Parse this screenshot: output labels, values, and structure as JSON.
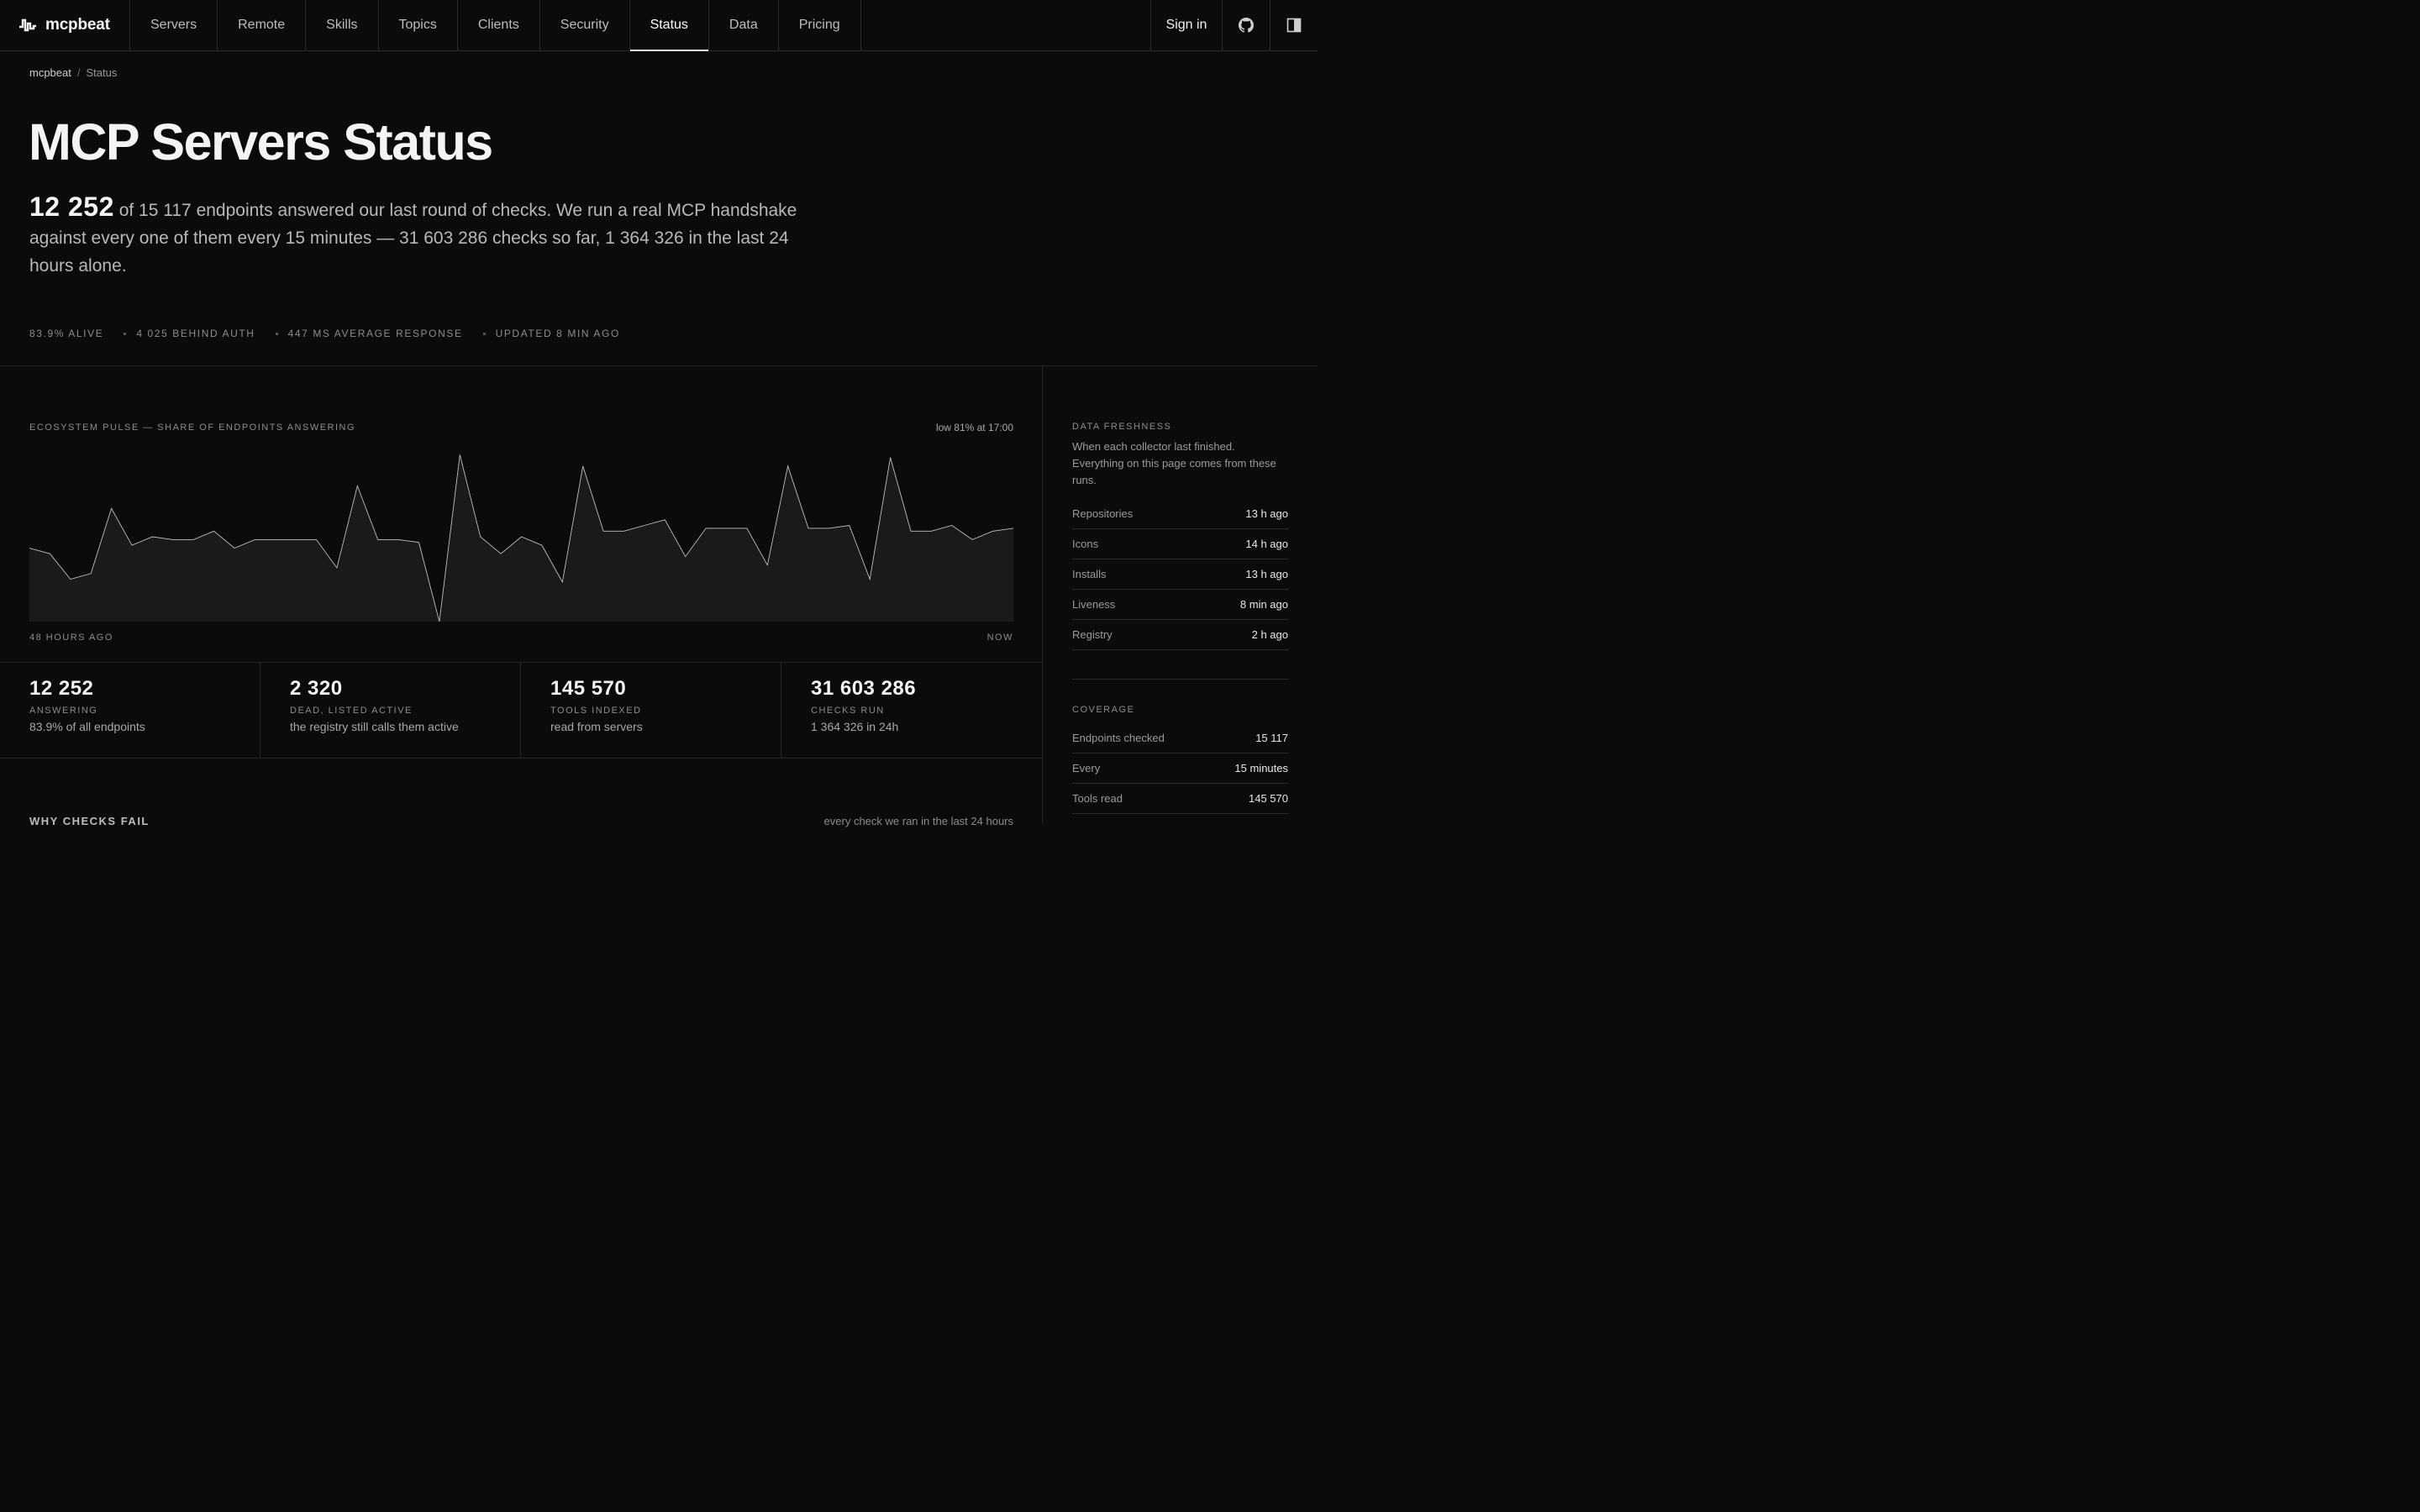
{
  "nav": {
    "brand": "mcpbeat",
    "items": [
      {
        "label": "Servers"
      },
      {
        "label": "Remote"
      },
      {
        "label": "Skills"
      },
      {
        "label": "Topics"
      },
      {
        "label": "Clients"
      },
      {
        "label": "Security"
      },
      {
        "label": "Status",
        "active": true
      },
      {
        "label": "Data"
      },
      {
        "label": "Pricing"
      }
    ],
    "sign_in": "Sign in",
    "github_icon": "github-icon",
    "panel_icon": "sidebar-toggle-icon"
  },
  "breadcrumb": {
    "root": "mcpbeat",
    "separator": "/",
    "current": "Status"
  },
  "page": {
    "title": "MCP Servers Status",
    "lead_number": "12 252",
    "lead_text": " of 15 117 endpoints answered our last round of checks. We run a real MCP handshake against every one of them every 15 minutes — 31 603 286 checks so far, 1 364 326 in the last 24 hours alone."
  },
  "meta": [
    "83.9% ALIVE",
    "4 025 BEHIND AUTH",
    "447 MS AVERAGE RESPONSE",
    "UPDATED 8 MIN AGO"
  ],
  "pulse": {
    "title": "ECOSYSTEM PULSE — SHARE OF ENDPOINTS ANSWERING",
    "low_note": "low 81% at 17:00",
    "axis_left": "48 HOURS AGO",
    "axis_right": "NOW"
  },
  "chart_data": {
    "type": "area",
    "x_start_label": "48 HOURS AGO",
    "x_end_label": "NOW",
    "y_unit": "% of endpoints answering",
    "color": "#bdbdbd",
    "fill": "#1a1a1a",
    "values": [
      83.6,
      83.4,
      82.5,
      82.7,
      85.0,
      83.7,
      84.0,
      83.9,
      83.9,
      84.2,
      83.6,
      83.9,
      83.9,
      83.9,
      83.9,
      82.9,
      85.8,
      83.9,
      83.9,
      83.8,
      81.0,
      86.9,
      84.0,
      83.4,
      84.0,
      83.7,
      82.4,
      86.5,
      84.2,
      84.2,
      84.4,
      84.6,
      83.3,
      84.3,
      84.3,
      84.3,
      83.0,
      86.5,
      84.3,
      84.3,
      84.4,
      82.5,
      86.8,
      84.2,
      84.2,
      84.4,
      83.9,
      84.2,
      84.3
    ]
  },
  "stats": [
    {
      "num": "12 252",
      "label": "ANSWERING",
      "sub": "83.9% of all endpoints"
    },
    {
      "num": "2 320",
      "label": "DEAD, LISTED ACTIVE",
      "sub": "the registry still calls them active"
    },
    {
      "num": "145 570",
      "label": "TOOLS INDEXED",
      "sub": "read from servers"
    },
    {
      "num": "31 603 286",
      "label": "CHECKS RUN",
      "sub": "1 364 326 in 24h"
    }
  ],
  "why": {
    "title": "WHY CHECKS FAIL",
    "right": "every check we ran in the last 24 hours"
  },
  "freshness": {
    "title": "DATA FRESHNESS",
    "desc": "When each collector last finished. Everything on this page comes from these runs.",
    "rows": [
      {
        "k": "Repositories",
        "v": "13 h ago"
      },
      {
        "k": "Icons",
        "v": "14 h ago"
      },
      {
        "k": "Installs",
        "v": "13 h ago"
      },
      {
        "k": "Liveness",
        "v": "8 min ago"
      },
      {
        "k": "Registry",
        "v": "2 h ago"
      }
    ]
  },
  "coverage": {
    "title": "COVERAGE",
    "rows": [
      {
        "k": "Endpoints checked",
        "v": "15 117"
      },
      {
        "k": "Every",
        "v": "15 minutes"
      },
      {
        "k": "Tools read",
        "v": "145 570"
      }
    ]
  }
}
